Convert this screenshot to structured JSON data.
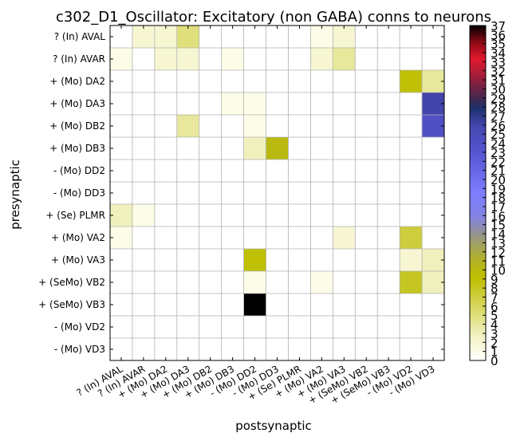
{
  "chart_data": {
    "type": "heatmap",
    "title": "c302_D1_Oscillator: Excitatory (non GABA) conns to neurons",
    "xlabel": "postsynaptic",
    "ylabel": "presynaptic",
    "x_categories": [
      "? (In) AVAL",
      "? (In) AVAR",
      "+ (Mo) DA2",
      "+ (Mo) DA3",
      "+ (Mo) DB2",
      "+ (Mo) DB3",
      "- (Mo) DD2",
      "- (Mo) DD3",
      "+ (Se) PLMR",
      "+ (Mo) VA2",
      "+ (Mo) VA3",
      "+ (SeMo) VB2",
      "+ (SeMo) VB3",
      "- (Mo) VD2",
      "- (Mo) VD3"
    ],
    "y_categories": [
      "? (In) AVAL",
      "? (In) AVAR",
      "+ (Mo) DA2",
      "+ (Mo) DA3",
      "+ (Mo) DB2",
      "+ (Mo) DB3",
      "- (Mo) DD2",
      "- (Mo) DD3",
      "+ (Se) PLMR",
      "+ (Mo) VA2",
      "+ (Mo) VA3",
      "+ (SeMo) VB2",
      "+ (SeMo) VB3",
      "- (Mo) VD2",
      "- (Mo) VD3"
    ],
    "values": [
      [
        0,
        2,
        2,
        5,
        0,
        0,
        0,
        0,
        0,
        1,
        2,
        0,
        0,
        0,
        0
      ],
      [
        1,
        0,
        2,
        2,
        0,
        1,
        0,
        0,
        0,
        2,
        4,
        0,
        0,
        0,
        0
      ],
      [
        0,
        0,
        0,
        0,
        0,
        0,
        0,
        0,
        0,
        0,
        0,
        0,
        0,
        9,
        4
      ],
      [
        0,
        0,
        0,
        0,
        0,
        1,
        1,
        0,
        0,
        0,
        0,
        0,
        0,
        0,
        26
      ],
      [
        0,
        0,
        0,
        4,
        0,
        0,
        1,
        0,
        0,
        0,
        0,
        0,
        0,
        0,
        24
      ],
      [
        0,
        0,
        0,
        0,
        0,
        0,
        3,
        10,
        0,
        0,
        0,
        0,
        0,
        0,
        0
      ],
      [
        0,
        0,
        0,
        0,
        0,
        0,
        0,
        0,
        0,
        0,
        0,
        0,
        0,
        0,
        0
      ],
      [
        0,
        0,
        0,
        0,
        0,
        0,
        0,
        0,
        0,
        0,
        0,
        0,
        0,
        0,
        0
      ],
      [
        3,
        1,
        0,
        0,
        0,
        0,
        0,
        0,
        0,
        0,
        0,
        0,
        0,
        0,
        0
      ],
      [
        1,
        0,
        0,
        0,
        0,
        0,
        0,
        0,
        0,
        0,
        2,
        0,
        0,
        7,
        0
      ],
      [
        0,
        0,
        0,
        0,
        0,
        0,
        9,
        0,
        0,
        0,
        0,
        0,
        0,
        2,
        3
      ],
      [
        0,
        0,
        0,
        0,
        0,
        0,
        1,
        0,
        0,
        1,
        0,
        0,
        0,
        8,
        3
      ],
      [
        0,
        0,
        0,
        0,
        0,
        0,
        37,
        0,
        0,
        0,
        0,
        0,
        0,
        0,
        0
      ],
      [
        0,
        0,
        0,
        0,
        0,
        0,
        0,
        0,
        0,
        0,
        0,
        0,
        0,
        0,
        0
      ],
      [
        0,
        0,
        0,
        0,
        0,
        0,
        0,
        0,
        0,
        0,
        0,
        0,
        0,
        0,
        0
      ]
    ],
    "colorbar": {
      "min": 0,
      "max": 37,
      "ticks": [
        0,
        1,
        2,
        3,
        4,
        5,
        6,
        7,
        8,
        9,
        10,
        11,
        12,
        13,
        14,
        15,
        16,
        17,
        18,
        19,
        20,
        21,
        22,
        23,
        24,
        25,
        26,
        27,
        28,
        29,
        30,
        31,
        32,
        33,
        34,
        35,
        36,
        37
      ],
      "colormap": "gist_stern_r",
      "placement": "right"
    },
    "grid": true
  }
}
